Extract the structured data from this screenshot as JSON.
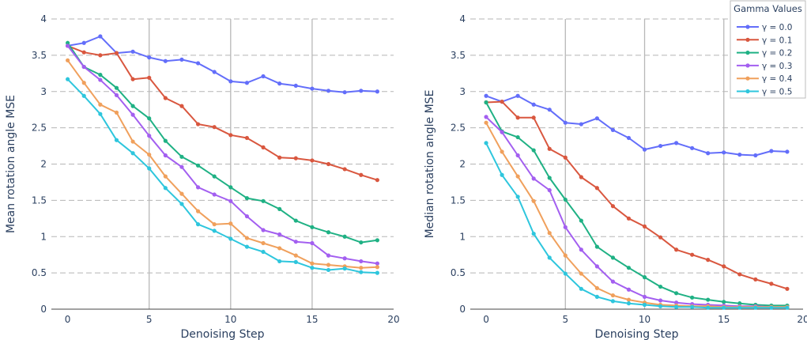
{
  "legend": {
    "title": "Gamma Values"
  },
  "colors": [
    "#636efa",
    "#d9573f",
    "#1fb184",
    "#a35ff0",
    "#f0a05c",
    "#2ec6dd"
  ],
  "chart_data": [
    {
      "type": "line",
      "xlabel": "Denoising Step",
      "ylabel": "Mean rotation angle MSE",
      "xlim": [
        -1,
        20
      ],
      "ylim": [
        0,
        4
      ],
      "xticks": [
        "0",
        "5",
        "10",
        "15",
        "20"
      ],
      "yticks": [
        "0",
        "0.5",
        "1",
        "1.5",
        "2",
        "2.5",
        "3",
        "3.5",
        "4"
      ],
      "x": [
        0,
        1,
        2,
        3,
        4,
        5,
        6,
        7,
        8,
        9,
        10,
        11,
        12,
        13,
        14,
        15,
        16,
        17,
        18,
        19
      ],
      "series": [
        {
          "name": "γ = 0.0",
          "values": [
            3.63,
            3.67,
            3.76,
            3.53,
            3.55,
            3.47,
            3.42,
            3.44,
            3.39,
            3.27,
            3.14,
            3.12,
            3.21,
            3.11,
            3.08,
            3.04,
            3.01,
            2.99,
            3.01,
            3.0
          ]
        },
        {
          "name": "γ = 0.1",
          "values": [
            3.63,
            3.54,
            3.5,
            3.53,
            3.17,
            3.19,
            2.91,
            2.8,
            2.55,
            2.51,
            2.4,
            2.36,
            2.23,
            2.09,
            2.08,
            2.05,
            2.0,
            1.93,
            1.85,
            1.78
          ]
        },
        {
          "name": "γ = 0.2",
          "values": [
            3.67,
            3.34,
            3.23,
            3.05,
            2.8,
            2.63,
            2.32,
            2.1,
            1.98,
            1.83,
            1.68,
            1.53,
            1.49,
            1.38,
            1.22,
            1.13,
            1.06,
            1.0,
            0.92,
            0.95
          ]
        },
        {
          "name": "γ = 0.3",
          "values": [
            3.63,
            3.34,
            3.16,
            2.95,
            2.68,
            2.39,
            2.12,
            1.96,
            1.68,
            1.58,
            1.49,
            1.28,
            1.09,
            1.03,
            0.93,
            0.91,
            0.74,
            0.7,
            0.66,
            0.63
          ]
        },
        {
          "name": "γ = 0.4",
          "values": [
            3.43,
            3.12,
            2.82,
            2.71,
            2.31,
            2.13,
            1.83,
            1.59,
            1.35,
            1.17,
            1.18,
            0.98,
            0.91,
            0.84,
            0.74,
            0.63,
            0.61,
            0.59,
            0.57,
            0.58
          ]
        },
        {
          "name": "γ = 0.5",
          "values": [
            3.17,
            2.94,
            2.69,
            2.33,
            2.15,
            1.94,
            1.67,
            1.45,
            1.17,
            1.08,
            0.97,
            0.86,
            0.79,
            0.66,
            0.65,
            0.57,
            0.54,
            0.56,
            0.51,
            0.5
          ]
        }
      ]
    },
    {
      "type": "line",
      "xlabel": "Denoising Step",
      "ylabel": "Median rotation angle MSE",
      "xlim": [
        -1,
        20
      ],
      "ylim": [
        0,
        4
      ],
      "xticks": [
        "0",
        "5",
        "10",
        "15",
        "20"
      ],
      "yticks": [
        "0",
        "0.5",
        "1",
        "1.5",
        "2",
        "2.5",
        "3",
        "3.5",
        "4"
      ],
      "x": [
        0,
        1,
        2,
        3,
        4,
        5,
        6,
        7,
        8,
        9,
        10,
        11,
        12,
        13,
        14,
        15,
        16,
        17,
        18,
        19
      ],
      "series": [
        {
          "name": "γ = 0.0",
          "values": [
            2.94,
            2.86,
            2.94,
            2.82,
            2.75,
            2.57,
            2.55,
            2.63,
            2.47,
            2.36,
            2.2,
            2.25,
            2.29,
            2.22,
            2.15,
            2.16,
            2.13,
            2.12,
            2.18,
            2.17
          ]
        },
        {
          "name": "γ = 0.1",
          "values": [
            2.85,
            2.86,
            2.64,
            2.64,
            2.21,
            2.09,
            1.82,
            1.67,
            1.42,
            1.25,
            1.14,
            0.99,
            0.82,
            0.75,
            0.68,
            0.59,
            0.48,
            0.41,
            0.35,
            0.28
          ]
        },
        {
          "name": "γ = 0.2",
          "values": [
            2.85,
            2.45,
            2.37,
            2.19,
            1.81,
            1.51,
            1.22,
            0.86,
            0.71,
            0.57,
            0.44,
            0.31,
            0.22,
            0.16,
            0.13,
            0.1,
            0.08,
            0.06,
            0.05,
            0.05
          ]
        },
        {
          "name": "γ = 0.3",
          "values": [
            2.65,
            2.44,
            2.12,
            1.8,
            1.64,
            1.13,
            0.82,
            0.59,
            0.38,
            0.27,
            0.17,
            0.12,
            0.09,
            0.07,
            0.06,
            0.05,
            0.04,
            0.04,
            0.03,
            0.03
          ]
        },
        {
          "name": "γ = 0.4",
          "values": [
            2.57,
            2.17,
            1.83,
            1.49,
            1.05,
            0.74,
            0.49,
            0.29,
            0.19,
            0.13,
            0.09,
            0.06,
            0.05,
            0.04,
            0.04,
            0.03,
            0.03,
            0.03,
            0.03,
            0.03
          ]
        },
        {
          "name": "γ = 0.5",
          "values": [
            2.29,
            1.85,
            1.55,
            1.04,
            0.71,
            0.49,
            0.28,
            0.17,
            0.11,
            0.08,
            0.06,
            0.04,
            0.03,
            0.03,
            0.02,
            0.02,
            0.02,
            0.02,
            0.02,
            0.02
          ]
        }
      ]
    }
  ]
}
